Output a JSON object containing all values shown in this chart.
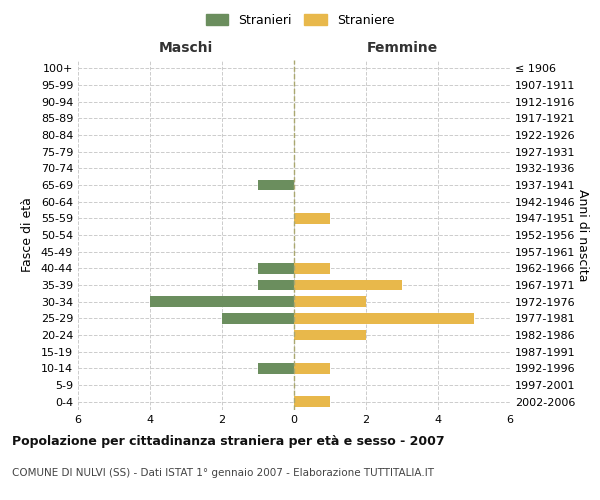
{
  "age_groups": [
    "0-4",
    "5-9",
    "10-14",
    "15-19",
    "20-24",
    "25-29",
    "30-34",
    "35-39",
    "40-44",
    "45-49",
    "50-54",
    "55-59",
    "60-64",
    "65-69",
    "70-74",
    "75-79",
    "80-84",
    "85-89",
    "90-94",
    "95-99",
    "100+"
  ],
  "birth_years": [
    "2002-2006",
    "1997-2001",
    "1992-1996",
    "1987-1991",
    "1982-1986",
    "1977-1981",
    "1972-1976",
    "1967-1971",
    "1962-1966",
    "1957-1961",
    "1952-1956",
    "1947-1951",
    "1942-1946",
    "1937-1941",
    "1932-1936",
    "1927-1931",
    "1922-1926",
    "1917-1921",
    "1912-1916",
    "1907-1911",
    "≤ 1906"
  ],
  "males": [
    0,
    0,
    1,
    0,
    0,
    2,
    4,
    1,
    1,
    0,
    0,
    0,
    0,
    1,
    0,
    0,
    0,
    0,
    0,
    0,
    0
  ],
  "females": [
    1,
    0,
    1,
    0,
    2,
    5,
    2,
    3,
    1,
    0,
    0,
    1,
    0,
    0,
    0,
    0,
    0,
    0,
    0,
    0,
    0
  ],
  "male_color": "#6b8e5e",
  "female_color": "#e8b84b",
  "title": "Popolazione per cittadinanza straniera per età e sesso - 2007",
  "subtitle": "COMUNE DI NULVI (SS) - Dati ISTAT 1° gennaio 2007 - Elaborazione TUTTITALIA.IT",
  "xlabel_left": "Maschi",
  "xlabel_right": "Femmine",
  "ylabel_left": "Fasce di età",
  "ylabel_right": "Anni di nascita",
  "legend_male": "Stranieri",
  "legend_female": "Straniere",
  "xlim": 6,
  "background_color": "#ffffff",
  "grid_color": "#cccccc"
}
